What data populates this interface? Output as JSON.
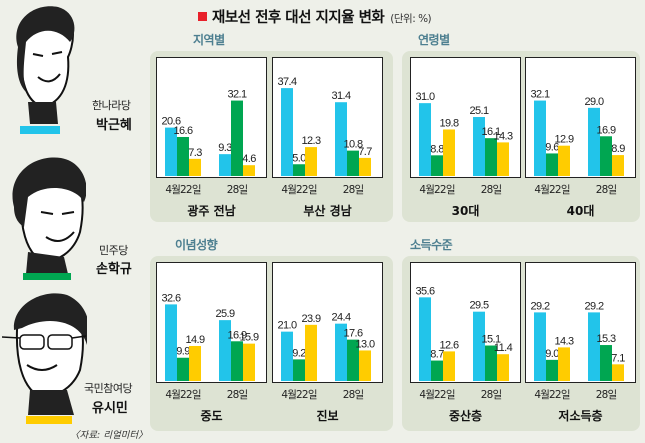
{
  "title": "재보선 전후 대선 지지율 변화",
  "unit": "(단위: %)",
  "source": "〈자료: 리얼미터〉",
  "candidates": [
    {
      "party": "한나라당",
      "name": "박근혜",
      "color": "#22c4ea"
    },
    {
      "party": "민주당",
      "name": "손학규",
      "color": "#00a651"
    },
    {
      "party": "국민참여당",
      "name": "유시민",
      "color": "#ffcc00"
    }
  ],
  "chart_data": {
    "type": "bar",
    "series_names": [
      "박근혜",
      "손학규",
      "유시민"
    ],
    "dates": [
      "4월22일",
      "28일"
    ],
    "ylim": [
      0,
      40
    ],
    "sections": [
      {
        "title": "지역별",
        "panels": [
          {
            "label": "광주 전남",
            "values": [
              [
                20.6,
                16.6,
                7.3
              ],
              [
                9.3,
                32.1,
                4.6
              ]
            ]
          },
          {
            "label": "부산 경남",
            "values": [
              [
                37.4,
                5.0,
                12.3
              ],
              [
                31.4,
                10.8,
                7.7
              ]
            ]
          }
        ]
      },
      {
        "title": "연령별",
        "panels": [
          {
            "label": "30대",
            "values": [
              [
                31.0,
                8.8,
                19.8
              ],
              [
                25.1,
                16.1,
                14.3
              ]
            ]
          },
          {
            "label": "40대",
            "values": [
              [
                32.1,
                9.6,
                12.9
              ],
              [
                29.0,
                16.9,
                8.9
              ]
            ]
          }
        ]
      },
      {
        "title": "이념성향",
        "panels": [
          {
            "label": "중도",
            "values": [
              [
                32.6,
                9.9,
                14.9
              ],
              [
                25.9,
                16.9,
                15.9
              ]
            ]
          },
          {
            "label": "진보",
            "values": [
              [
                21.0,
                9.2,
                23.9
              ],
              [
                24.4,
                17.6,
                13.0
              ]
            ]
          }
        ]
      },
      {
        "title": "소득수준",
        "panels": [
          {
            "label": "중산층",
            "values": [
              [
                35.6,
                8.7,
                12.6
              ],
              [
                29.5,
                15.1,
                11.4
              ]
            ]
          },
          {
            "label": "저소득층",
            "values": [
              [
                29.2,
                9.0,
                14.3
              ],
              [
                29.2,
                15.3,
                7.1
              ]
            ]
          }
        ]
      }
    ]
  }
}
